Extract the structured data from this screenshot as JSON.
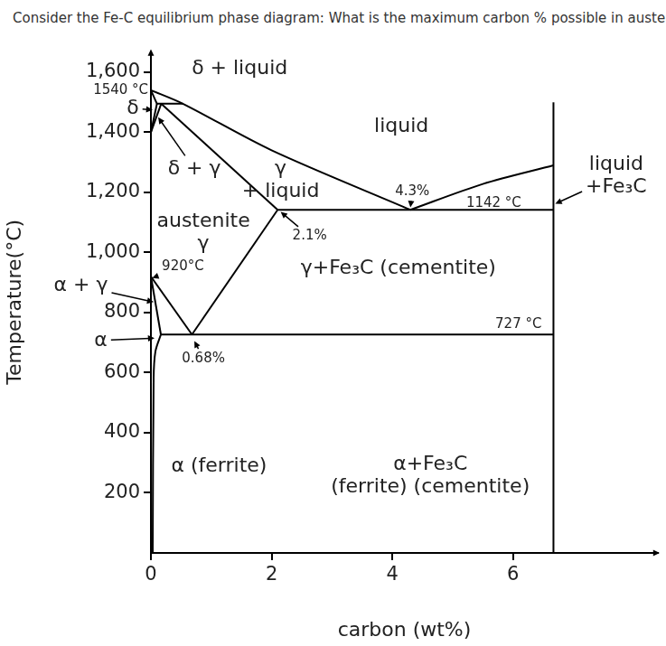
{
  "chart_data": {
    "type": "line",
    "title": "Consider the Fe-C equilibrium phase diagram:  What is the maximum carbon % possible in austenite?",
    "x_label": "carbon (wt%)",
    "y_label": "Temperature(°C)",
    "xlim": [
      0,
      8.4
    ],
    "xticks": [
      0,
      2,
      4,
      6
    ],
    "ylim": [
      0,
      1670
    ],
    "yticks": [
      200,
      400,
      600,
      800,
      1000,
      1200,
      1400,
      1600
    ],
    "grid": false,
    "series": [
      {
        "color": "#000000",
        "x": [
          0,
          0.53,
          2,
          4.3
        ],
        "values": [
          1540,
          1495,
          1340,
          1142
        ]
      },
      {
        "color": "#000000",
        "x": [
          4.3,
          5.5,
          6.67
        ],
        "values": [
          1142,
          1228,
          1290
        ]
      },
      {
        "color": "#000000",
        "x": [
          0.17,
          2.1
        ],
        "values": [
          1495,
          1142
        ]
      },
      {
        "color": "#000000",
        "x": [
          0.1,
          0.53
        ],
        "values": [
          1495,
          1495
        ]
      },
      {
        "color": "#000000",
        "x": [
          0,
          0.1
        ],
        "values": [
          1540,
          1495
        ]
      },
      {
        "color": "#000000",
        "x": [
          0.1,
          0
        ],
        "values": [
          1495,
          1400
        ]
      },
      {
        "color": "#000000",
        "x": [
          0.17,
          0
        ],
        "values": [
          1495,
          1400
        ]
      },
      {
        "color": "#000000",
        "x": [
          2.1,
          0.68
        ],
        "values": [
          1142,
          727
        ]
      },
      {
        "color": "#000000",
        "x": [
          0,
          0.68
        ],
        "values": [
          920,
          727
        ]
      },
      {
        "color": "#000000",
        "x": [
          0,
          0.165
        ],
        "values": [
          920,
          727
        ]
      },
      {
        "color": "#000000",
        "x": [
          0.165,
          0.075,
          0.045,
          0.03
        ],
        "values": [
          727,
          671,
          581,
          0
        ]
      },
      {
        "color": "#000000",
        "x": [
          0.165,
          6.67
        ],
        "values": [
          727,
          727
        ]
      },
      {
        "color": "#000000",
        "x": [
          2.1,
          6.67
        ],
        "values": [
          1142,
          1142
        ]
      },
      {
        "color": "#000000",
        "x": [
          6.67,
          6.67
        ],
        "values": [
          0,
          1500
        ]
      }
    ],
    "annotations": [
      {
        "text": "δ + liquid",
        "x": 1.47,
        "y": 1611
      },
      {
        "text": "1540 °C",
        "x": -0.5,
        "y": 1539
      },
      {
        "text": "δ",
        "x": -0.3,
        "y": 1479,
        "points_to": [
          0.03,
          1475
        ]
      },
      {
        "text": "δ + γ",
        "x": 0.72,
        "y": 1278,
        "points_to": [
          0.12,
          1450
        ]
      },
      {
        "text": "liquid",
        "x": 4.15,
        "y": 1419
      },
      {
        "text": "γ\n+ liquid",
        "x": 2.15,
        "y": 1240
      },
      {
        "text": "4.3%",
        "x": 4.33,
        "y": 1203,
        "points_to": [
          4.3,
          1150
        ]
      },
      {
        "text": "1142 °C",
        "x": 5.68,
        "y": 1162
      },
      {
        "text": "liquid\n+Fe₃C",
        "x": 7.71,
        "y": 1255,
        "points_to": [
          6.7,
          1162
        ]
      },
      {
        "text": "austenite\nγ",
        "x": 0.87,
        "y": 1066
      },
      {
        "text": "2.1%",
        "x": 2.63,
        "y": 1054,
        "points_to": [
          2.15,
          1135
        ]
      },
      {
        "text": "920°C",
        "x": 0.53,
        "y": 952,
        "points_to": [
          0.02,
          915
        ]
      },
      {
        "text": "γ+Fe₃C (cementite)",
        "x": 4.1,
        "y": 946
      },
      {
        "text": "α + γ",
        "x": -1.16,
        "y": 889,
        "points_to": [
          0.045,
          835
        ]
      },
      {
        "text": "727 °C",
        "x": 6.09,
        "y": 760
      },
      {
        "text": "α",
        "x": -0.83,
        "y": 707,
        "points_to": [
          0.06,
          715
        ]
      },
      {
        "text": "0.68%",
        "x": 0.87,
        "y": 647,
        "points_to": [
          0.72,
          705
        ]
      },
      {
        "text": "α (ferrite)",
        "x": 1.13,
        "y": 287
      },
      {
        "text": "α+Fe₃C\n(ferrite) (cementite)",
        "x": 4.63,
        "y": 257
      }
    ]
  }
}
